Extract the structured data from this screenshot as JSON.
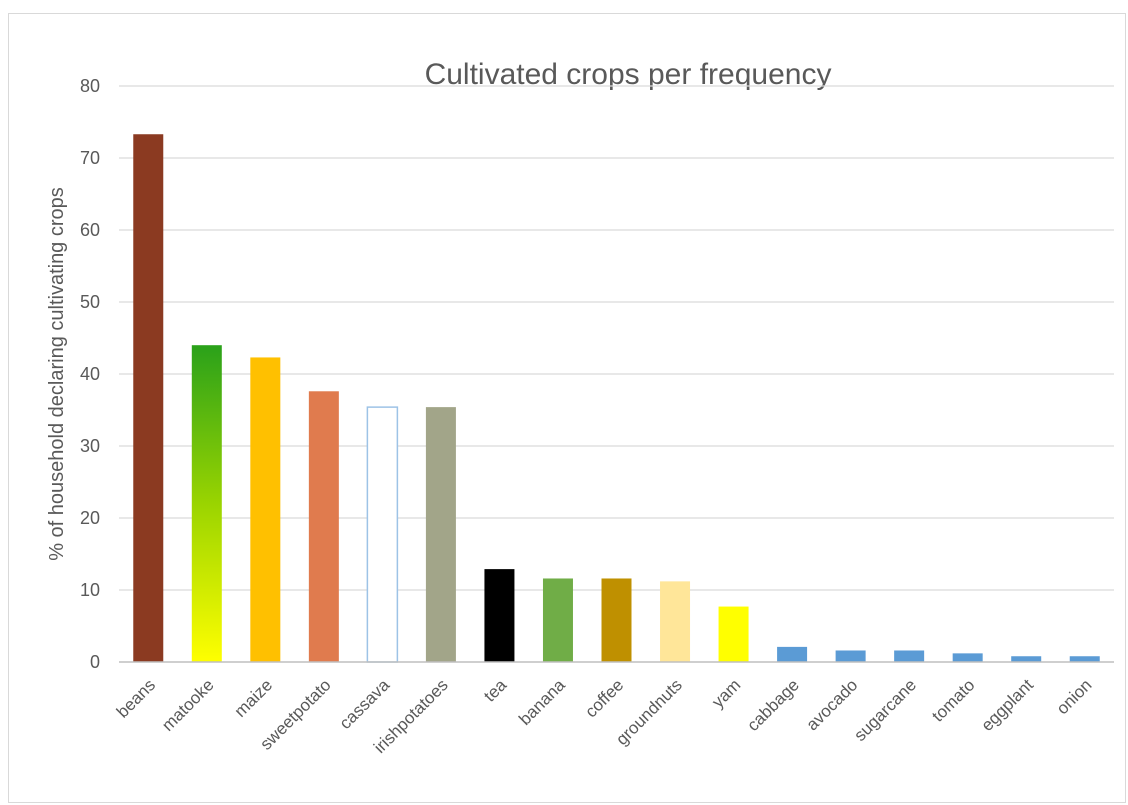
{
  "chart_data": {
    "type": "bar",
    "title": "Cultivated crops per frequency",
    "xlabel": "",
    "ylabel": "% of household declaring cultivating crops",
    "ylim": [
      0,
      80
    ],
    "yticks": [
      0,
      10,
      20,
      30,
      40,
      50,
      60,
      70,
      80
    ],
    "grid": true,
    "legend": "none",
    "categories": [
      "beans",
      "matooke",
      "maize",
      "sweetpotato",
      "cassava",
      "irishpotatoes",
      "tea",
      "banana",
      "coffee",
      "groundnuts",
      "yam",
      "cabbage",
      "avocado",
      "sugarcane",
      "tomato",
      "eggplant",
      "onion"
    ],
    "values": [
      73.3,
      44.0,
      42.3,
      37.6,
      35.4,
      35.4,
      12.9,
      11.6,
      11.6,
      11.2,
      7.7,
      2.1,
      1.6,
      1.6,
      1.2,
      0.8,
      0.8
    ],
    "colors": [
      "#8b3a21",
      "gradient:#2aa11a-#ffff00",
      "#ffc000",
      "#e07b4e",
      "outline:#9dc3e6",
      "#a2a589",
      "#000000",
      "#70ad47",
      "#bf9000",
      "#ffe699",
      "#ffff00",
      "#5b9bd5",
      "#5b9bd5",
      "#5b9bd5",
      "#5b9bd5",
      "#5b9bd5",
      "#5b9bd5"
    ]
  }
}
